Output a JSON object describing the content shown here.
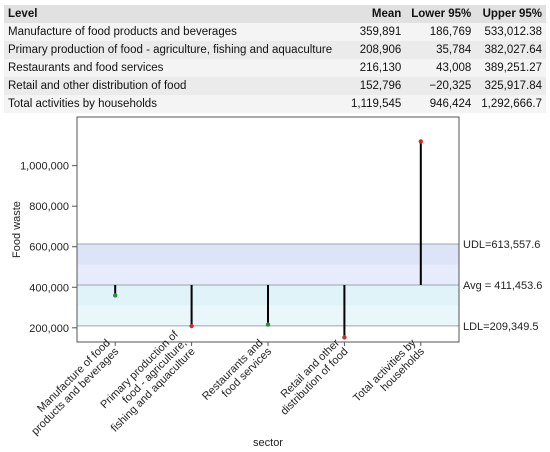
{
  "table": {
    "headers": [
      "Level",
      "Mean",
      "Lower 95%",
      "Upper 95%"
    ],
    "rows": [
      [
        "Manufacture of food products and beverages",
        "359,891",
        "186,769",
        "533,012.38"
      ],
      [
        "Primary production of food - agriculture, fishing and aquaculture",
        "208,906",
        "35,784",
        "382,027.64"
      ],
      [
        "Restaurants and food services",
        "216,130",
        "43,008",
        "389,251.27"
      ],
      [
        "Retail and other distribution of food",
        "152,796",
        "−20,325",
        "325,917.84"
      ],
      [
        "Total activities by households",
        "1,119,545",
        "946,424",
        "1,292,666.7"
      ]
    ]
  },
  "chart_data": {
    "type": "analysis_of_means",
    "title": "",
    "xlabel": "sector",
    "ylabel": "Food waste",
    "ylim": [
      130000,
      1240000
    ],
    "yticks": [
      200000,
      400000,
      600000,
      800000,
      1000000
    ],
    "ytick_labels": [
      "200,000",
      "400,000",
      "600,000",
      "800,000",
      "1,000,000"
    ],
    "categories": [
      "Manufacture of food products and beverages",
      "Primary production of food - agriculture, fishing and aquaculture",
      "Restaurants and food services",
      "Retail and other distribution of food",
      "Total activities by households"
    ],
    "category_labels": [
      [
        "Manufacture of food",
        "products and beverages"
      ],
      [
        "Primary production of",
        "food - agriculture,",
        "fishing and aquaculture"
      ],
      [
        "Restaurants and",
        "food services"
      ],
      [
        "Retail and other",
        "distribution of food"
      ],
      [
        "Total activities by",
        "households"
      ]
    ],
    "values": [
      359891,
      208906,
      216130,
      152796,
      1119545
    ],
    "point_colors": [
      "#2e8b3a",
      "#d62728",
      "#2e8b3a",
      "#d62728",
      "#d62728"
    ],
    "avg": 411453.6,
    "udl": 613557.6,
    "ldl": 209349.5,
    "avg_label": "Avg = 411,453.6",
    "udl_label": "UDL=613,557.6",
    "ldl_label": "LDL=209,349.5",
    "zones": [
      {
        "from": 209349.5,
        "to": 310401.5,
        "color": "#e9f7fb"
      },
      {
        "from": 310401.5,
        "to": 411453.6,
        "color": "#dff3f8"
      },
      {
        "from": 411453.6,
        "to": 512505.6,
        "color": "#e6ecfb"
      },
      {
        "from": 512505.6,
        "to": 613557.6,
        "color": "#dde4f7"
      }
    ]
  }
}
